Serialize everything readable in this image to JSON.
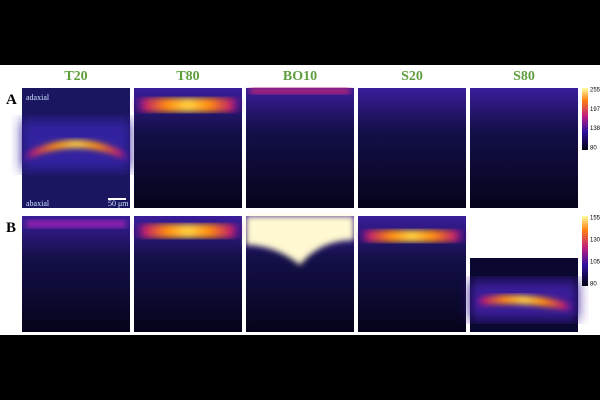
{
  "columns": [
    "T20",
    "T80",
    "BO10",
    "S20",
    "S80"
  ],
  "rows": [
    "A",
    "B"
  ],
  "annotations": {
    "top": "adaxial",
    "bottom": "abaxial",
    "scale_bar": "50 μm"
  },
  "colorbars": [
    {
      "ticks": [
        255,
        197,
        138,
        80
      ]
    },
    {
      "ticks": [
        155,
        130,
        105,
        80
      ]
    }
  ]
}
